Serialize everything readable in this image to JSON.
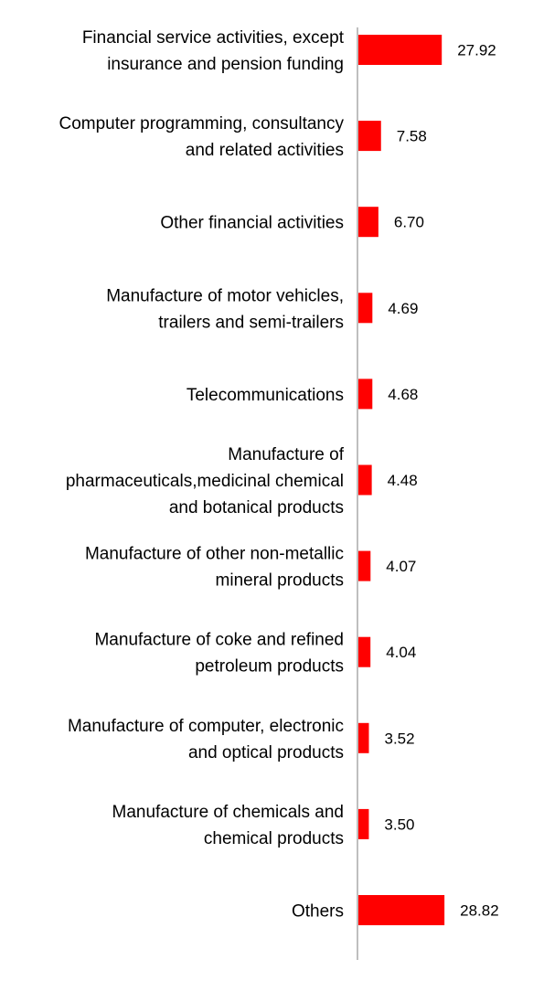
{
  "chart_data": {
    "type": "bar",
    "orientation": "horizontal",
    "title": "",
    "xlabel": "",
    "ylabel": "",
    "categories": [
      [
        "Financial service activities, except",
        "insurance and pension funding"
      ],
      [
        "Computer programming, consultancy",
        "and related activities"
      ],
      [
        "Other financial activities"
      ],
      [
        "Manufacture of motor vehicles,",
        "trailers and semi-trailers"
      ],
      [
        "Telecommunications"
      ],
      [
        "Manufacture of",
        "pharmaceuticals,medicinal chemical",
        "and botanical products"
      ],
      [
        "Manufacture of other non-metallic",
        "mineral products"
      ],
      [
        "Manufacture of coke and refined",
        "petroleum products"
      ],
      [
        "Manufacture of computer, electronic",
        "and optical products"
      ],
      [
        "Manufacture of chemicals and",
        "chemical products"
      ],
      [
        "Others"
      ]
    ],
    "values": [
      27.92,
      7.58,
      6.7,
      4.69,
      4.68,
      4.48,
      4.07,
      4.04,
      3.52,
      3.5,
      28.82
    ],
    "value_labels": [
      "27.92",
      "7.58",
      "6.70",
      "4.69",
      "4.68",
      "4.48",
      "4.07",
      "4.04",
      "3.52",
      "3.50",
      "28.82"
    ],
    "xlim": [
      0,
      30
    ],
    "grid": false,
    "legend": "none",
    "bar_color": "#ff0000",
    "axis_color": "#bfbfbf"
  }
}
